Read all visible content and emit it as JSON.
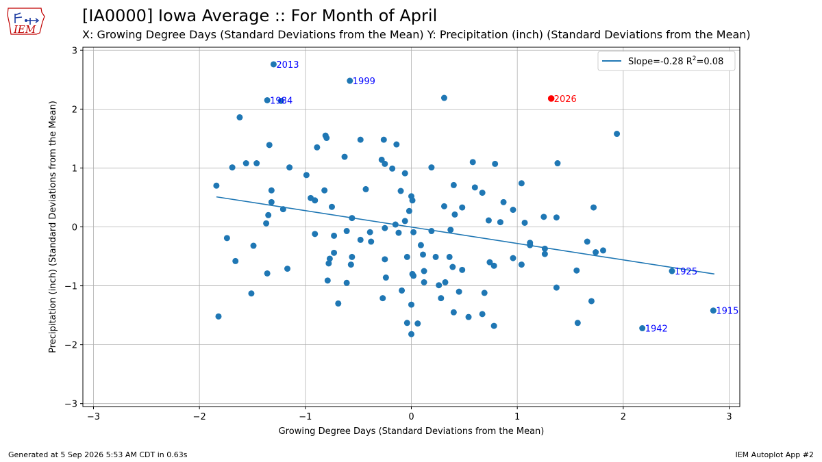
{
  "header": {
    "title": "[IA0000] Iowa Average :: For Month of April",
    "subtitle": "X: Growing Degree Days (Standard Deviations from the Mean) Y: Precipitation (inch) (Standard Deviations from the Mean)",
    "logo_text": "IEM",
    "logo_icon": "iowa-state-map-icon"
  },
  "footer": {
    "generated": "Generated at 5 Sep 2026 5:53 AM CDT in 0.63s",
    "app": "IEM Autoplot App #2"
  },
  "colors": {
    "points": "#1f77b4",
    "highlight": "#ff0000",
    "label": "#0000ff",
    "regression": "#1f77b4",
    "grid": "#b0b0b0"
  },
  "chart_data": {
    "type": "scatter",
    "title": "[IA0000] Iowa Average :: For Month of April",
    "subtitle": "X: Growing Degree Days (Standard Deviations from the Mean) Y: Precipitation (inch) (Standard Deviations from the Mean)",
    "xlabel": "Growing Degree Days (Standard Deviations from the Mean)",
    "ylabel": "Precipitation (inch) (Standard Deviations from the Mean)",
    "xlim": [
      -3.1,
      3.1
    ],
    "ylim": [
      -3.05,
      3.05
    ],
    "xticks": [
      -3,
      -2,
      -1,
      0,
      1,
      2,
      3
    ],
    "xtick_labels": [
      "−3",
      "−2",
      "−1",
      "0",
      "1",
      "2",
      "3"
    ],
    "yticks": [
      -3,
      -2,
      -1,
      0,
      1,
      2,
      3
    ],
    "ytick_labels": [
      "−3",
      "−2",
      "−1",
      "0",
      "1",
      "2",
      "3"
    ],
    "grid": true,
    "legend": {
      "placement": "top-right",
      "label": "Slope=-0.28 R",
      "superscript": "2",
      "suffix": "=0.08"
    },
    "regression": {
      "x": [
        -1.84,
        2.86
      ],
      "y": [
        0.51,
        -0.8
      ]
    },
    "labeled_points": [
      {
        "year": "2013",
        "x": -1.3,
        "y": 2.76
      },
      {
        "year": "1999",
        "x": -0.58,
        "y": 2.48
      },
      {
        "year": "1984",
        "x": -1.36,
        "y": 2.15
      },
      {
        "year": "1925",
        "x": 2.46,
        "y": -0.75
      },
      {
        "year": "1915",
        "x": 2.85,
        "y": -1.42
      },
      {
        "year": "1942",
        "x": 2.18,
        "y": -1.72
      }
    ],
    "highlight_point": {
      "year": "2026",
      "x": 1.32,
      "y": 2.18
    },
    "points": [
      [
        -1.23,
        2.14
      ],
      [
        0.31,
        2.19
      ],
      [
        -1.62,
        1.86
      ],
      [
        1.94,
        1.58
      ],
      [
        -0.81,
        1.55
      ],
      [
        -0.8,
        1.51
      ],
      [
        -0.48,
        1.48
      ],
      [
        -0.26,
        1.48
      ],
      [
        -0.14,
        1.4
      ],
      [
        -1.34,
        1.39
      ],
      [
        -0.89,
        1.35
      ],
      [
        -0.63,
        1.19
      ],
      [
        -0.28,
        1.14
      ],
      [
        -0.25,
        1.07
      ],
      [
        0.58,
        1.1
      ],
      [
        0.79,
        1.07
      ],
      [
        1.38,
        1.08
      ],
      [
        -1.56,
        1.08
      ],
      [
        -1.46,
        1.08
      ],
      [
        -1.69,
        1.01
      ],
      [
        -1.15,
        1.01
      ],
      [
        0.19,
        1.01
      ],
      [
        -0.18,
        0.99
      ],
      [
        -0.06,
        0.91
      ],
      [
        -0.99,
        0.88
      ],
      [
        1.04,
        0.74
      ],
      [
        0.4,
        0.71
      ],
      [
        0.6,
        0.67
      ],
      [
        -1.84,
        0.7
      ],
      [
        -0.43,
        0.64
      ],
      [
        -0.82,
        0.62
      ],
      [
        -0.1,
        0.61
      ],
      [
        -1.32,
        0.62
      ],
      [
        0.67,
        0.58
      ],
      [
        0.0,
        0.52
      ],
      [
        -0.95,
        0.49
      ],
      [
        0.01,
        0.45
      ],
      [
        -0.91,
        0.45
      ],
      [
        -1.32,
        0.42
      ],
      [
        0.87,
        0.42
      ],
      [
        0.31,
        0.35
      ],
      [
        -0.75,
        0.34
      ],
      [
        0.48,
        0.33
      ],
      [
        1.72,
        0.33
      ],
      [
        0.96,
        0.29
      ],
      [
        -0.02,
        0.27
      ],
      [
        -1.21,
        0.3
      ],
      [
        0.41,
        0.21
      ],
      [
        1.25,
        0.17
      ],
      [
        1.37,
        0.16
      ],
      [
        -1.35,
        0.2
      ],
      [
        -0.56,
        0.15
      ],
      [
        0.73,
        0.11
      ],
      [
        -0.06,
        0.1
      ],
      [
        0.84,
        0.08
      ],
      [
        1.07,
        0.07
      ],
      [
        -1.37,
        0.06
      ],
      [
        -0.15,
        0.04
      ],
      [
        -0.25,
        -0.02
      ],
      [
        0.37,
        -0.05
      ],
      [
        -0.61,
        -0.07
      ],
      [
        -0.39,
        -0.09
      ],
      [
        0.19,
        -0.07
      ],
      [
        0.02,
        -0.09
      ],
      [
        -0.12,
        -0.1
      ],
      [
        -0.91,
        -0.12
      ],
      [
        -0.73,
        -0.15
      ],
      [
        -1.74,
        -0.19
      ],
      [
        -0.48,
        -0.22
      ],
      [
        -0.38,
        -0.25
      ],
      [
        1.66,
        -0.25
      ],
      [
        1.12,
        -0.27
      ],
      [
        1.12,
        -0.31
      ],
      [
        0.09,
        -0.31
      ],
      [
        -1.49,
        -0.32
      ],
      [
        1.26,
        -0.37
      ],
      [
        1.81,
        -0.4
      ],
      [
        1.74,
        -0.43
      ],
      [
        -0.73,
        -0.44
      ],
      [
        1.26,
        -0.46
      ],
      [
        0.11,
        -0.47
      ],
      [
        -0.04,
        -0.51
      ],
      [
        0.23,
        -0.51
      ],
      [
        0.36,
        -0.51
      ],
      [
        0.96,
        -0.53
      ],
      [
        -0.56,
        -0.51
      ],
      [
        -0.77,
        -0.54
      ],
      [
        -0.25,
        -0.55
      ],
      [
        -1.66,
        -0.58
      ],
      [
        -0.78,
        -0.62
      ],
      [
        0.74,
        -0.6
      ],
      [
        -0.57,
        -0.64
      ],
      [
        1.04,
        -0.64
      ],
      [
        0.78,
        -0.66
      ],
      [
        0.39,
        -0.68
      ],
      [
        0.48,
        -0.73
      ],
      [
        0.12,
        -0.75
      ],
      [
        1.56,
        -0.74
      ],
      [
        -1.17,
        -0.71
      ],
      [
        -1.36,
        -0.79
      ],
      [
        0.01,
        -0.8
      ],
      [
        0.02,
        -0.83
      ],
      [
        -0.24,
        -0.86
      ],
      [
        -0.79,
        -0.91
      ],
      [
        -0.61,
        -0.95
      ],
      [
        0.12,
        -0.94
      ],
      [
        0.32,
        -0.94
      ],
      [
        0.26,
        -0.99
      ],
      [
        1.37,
        -1.03
      ],
      [
        0.45,
        -1.1
      ],
      [
        -0.09,
        -1.08
      ],
      [
        0.69,
        -1.12
      ],
      [
        -1.51,
        -1.13
      ],
      [
        -0.27,
        -1.21
      ],
      [
        0.28,
        -1.21
      ],
      [
        1.7,
        -1.26
      ],
      [
        -0.69,
        -1.3
      ],
      [
        0.0,
        -1.32
      ],
      [
        0.4,
        -1.45
      ],
      [
        0.67,
        -1.48
      ],
      [
        -1.82,
        -1.52
      ],
      [
        0.54,
        -1.53
      ],
      [
        -0.04,
        -1.63
      ],
      [
        0.06,
        -1.64
      ],
      [
        1.57,
        -1.63
      ],
      [
        0.78,
        -1.68
      ],
      [
        0.0,
        -1.82
      ]
    ]
  }
}
